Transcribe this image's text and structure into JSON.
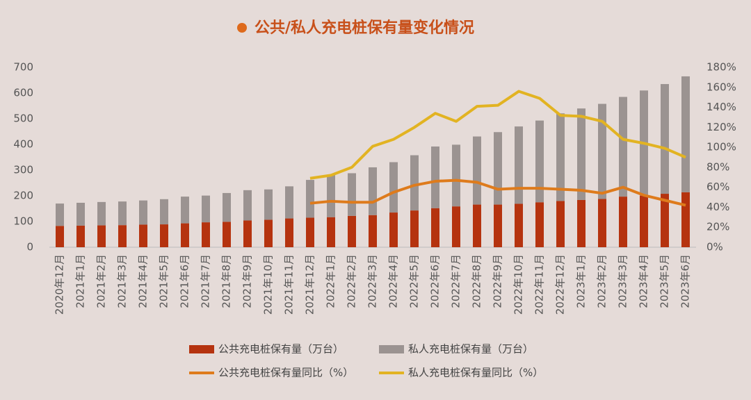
{
  "chart_data": {
    "type": "bar_line",
    "title": "公共/私人充电桩保有量变化情况",
    "categories": [
      "2020年12月",
      "2021年1月",
      "2021年2月",
      "2021年3月",
      "2021年4月",
      "2021年5月",
      "2021年6月",
      "2021年7月",
      "2021年8月",
      "2021年9月",
      "2021年10月",
      "2021年11月",
      "2021年12月",
      "2022年1月",
      "2022年2月",
      "2022年3月",
      "2022年4月",
      "2022年5月",
      "2022年6月",
      "2022年7月",
      "2022年8月",
      "2022年9月",
      "2022年10月",
      "2022年11月",
      "2022年12月",
      "2023年1月",
      "2023年2月",
      "2023年3月",
      "2023年4月",
      "2023年5月",
      "2023年6月"
    ],
    "series": [
      {
        "name": "公共充电桩保有量（万台）",
        "kind": "bar",
        "color": "#b5330f",
        "values": [
          83,
          84,
          85,
          86,
          88,
          89,
          93,
          97,
          99,
          104,
          107,
          112,
          115,
          117,
          122,
          125,
          135,
          143,
          152,
          159,
          166,
          166,
          169,
          175,
          180,
          184,
          188,
          197,
          201,
          208,
          214
        ]
      },
      {
        "name": "私人充电桩保有量（万台）",
        "kind": "bar",
        "color": "#9b9391",
        "values": [
          87,
          89,
          91,
          92,
          94,
          98,
          104,
          104,
          112,
          118,
          118,
          125,
          147,
          165,
          166,
          186,
          196,
          215,
          240,
          240,
          265,
          282,
          301,
          318,
          341,
          356,
          370,
          388,
          409,
          427,
          451
        ]
      },
      {
        "name": "公共充电桩保有量同比（%）",
        "kind": "line",
        "axis": "y2",
        "color": "#de7b1c",
        "values": [
          null,
          null,
          null,
          null,
          null,
          null,
          null,
          null,
          null,
          null,
          null,
          null,
          44,
          46,
          45,
          45,
          55,
          62,
          66,
          67,
          65,
          58,
          59,
          59,
          58,
          57,
          54,
          60,
          52,
          47,
          42
        ]
      },
      {
        "name": "私人充电桩保有量同比（%）",
        "kind": "line",
        "axis": "y2",
        "color": "#e2b322",
        "values": [
          null,
          null,
          null,
          null,
          null,
          null,
          null,
          null,
          null,
          null,
          null,
          null,
          69,
          72,
          80,
          101,
          108,
          120,
          134,
          126,
          141,
          142,
          156,
          149,
          132,
          131,
          126,
          108,
          104,
          99,
          90
        ]
      }
    ],
    "stacked": true,
    "ylim": [
      0,
      700
    ],
    "yticks": [
      0,
      100,
      200,
      300,
      400,
      500,
      600,
      700
    ],
    "y2lim": [
      0,
      180
    ],
    "y2ticks": [
      {
        "value": 0,
        "label": "0%"
      },
      {
        "value": 20,
        "label": "20%"
      },
      {
        "value": 40,
        "label": "40%"
      },
      {
        "value": 60,
        "label": "60%"
      },
      {
        "value": 80,
        "label": "80%"
      },
      {
        "value": 100,
        "label": "100%"
      },
      {
        "value": 120,
        "label": "120%"
      },
      {
        "value": 140,
        "label": "140%"
      },
      {
        "value": 160,
        "label": "160%"
      },
      {
        "value": 180,
        "label": "180%"
      }
    ],
    "grid": false,
    "legend": "bottom"
  }
}
